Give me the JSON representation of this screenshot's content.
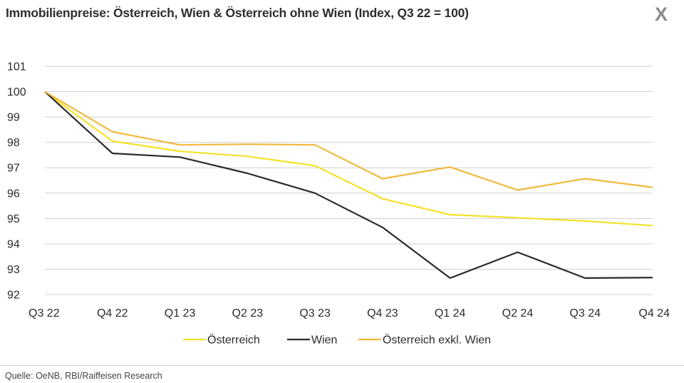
{
  "header": {
    "title": "Immobilienpreise: Österreich, Wien & Österreich ohne Wien (Index, Q3 22 = 100)",
    "close_label": "X"
  },
  "footer": {
    "source": "Quelle: OeNB, RBI/Raiffeisen Research"
  },
  "chart_data": {
    "type": "line",
    "title": "Immobilienpreise: Österreich, Wien & Österreich ohne Wien (Index, Q3 22 = 100)",
    "categories": [
      "Q3 22",
      "Q4 22",
      "Q1 23",
      "Q2 23",
      "Q3 23",
      "Q4 23",
      "Q1 24",
      "Q2 24",
      "Q3 24",
      "Q4 24"
    ],
    "ylim": [
      92,
      101
    ],
    "yticks": [
      101,
      100,
      99,
      98,
      97,
      96,
      95,
      94,
      93,
      92
    ],
    "grid": true,
    "legend_position": "bottom",
    "series": [
      {
        "name": "Österreich",
        "color": "#f5e12a",
        "values": [
          100,
          98.05,
          97.65,
          97.45,
          97.08,
          95.78,
          95.15,
          95.03,
          94.9,
          94.72
        ]
      },
      {
        "name": "Wien",
        "color": "#2b2b2b",
        "values": [
          100,
          97.57,
          97.42,
          96.78,
          96.0,
          94.65,
          92.65,
          93.67,
          92.65,
          92.67
        ]
      },
      {
        "name": "Österreich exkl. Wien",
        "color": "#f1b93c",
        "values": [
          100,
          98.42,
          97.9,
          97.93,
          97.9,
          96.57,
          97.03,
          96.12,
          96.57,
          96.23
        ]
      }
    ]
  }
}
